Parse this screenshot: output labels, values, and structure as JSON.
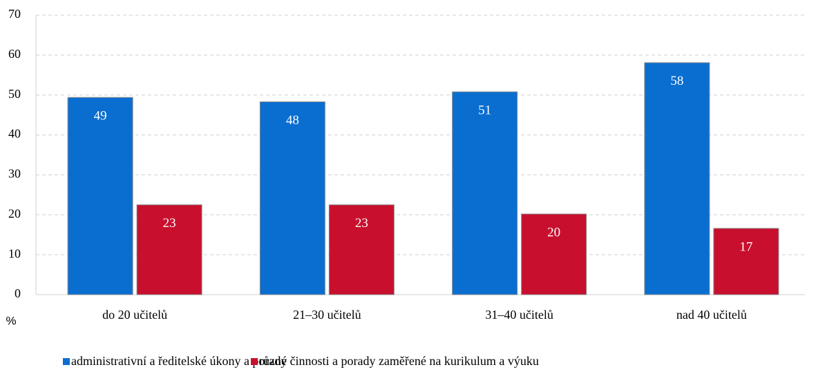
{
  "chart_data": {
    "type": "bar",
    "categories": [
      "do 20 učitelů",
      "21–30 učitelů",
      "31–40 učitelů",
      "nad 40 učitelů"
    ],
    "series": [
      {
        "name": "administrativní a ředitelské úkony a porady",
        "color": "#0a6ed1",
        "values": [
          49.4,
          48.3,
          50.8,
          58.1
        ],
        "value_labels": [
          "49",
          "48",
          "51",
          "58"
        ]
      },
      {
        "name": "různé činnosti a porady zaměřené na kurikulum a výuku",
        "color": "#c8102e",
        "values": [
          22.5,
          22.5,
          20.2,
          16.6
        ],
        "value_labels": [
          "23",
          "23",
          "20",
          "17"
        ]
      }
    ],
    "ylabel": "%",
    "ylim": [
      0,
      70
    ],
    "yticks": [
      0,
      10,
      20,
      30,
      40,
      50,
      60,
      70
    ],
    "grid": true,
    "legend": "bottom"
  }
}
